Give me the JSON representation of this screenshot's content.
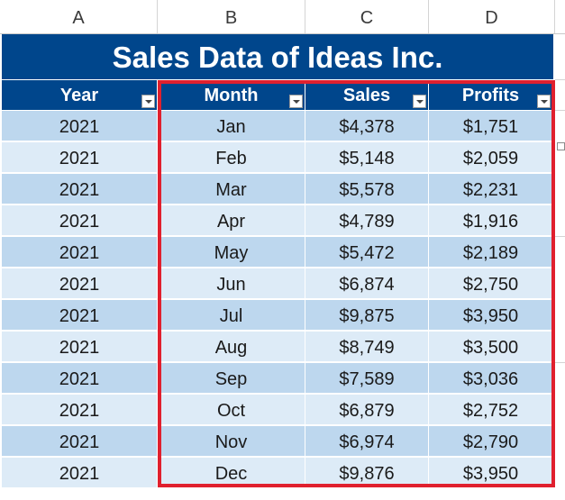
{
  "columns": [
    "A",
    "B",
    "C",
    "D"
  ],
  "table": {
    "title": "Sales Data of Ideas Inc.",
    "headers": [
      "Year",
      "Month",
      "Sales",
      "Profits"
    ],
    "rows": [
      [
        "2021",
        "Jan",
        "$4,378",
        "$1,751"
      ],
      [
        "2021",
        "Feb",
        "$5,148",
        "$2,059"
      ],
      [
        "2021",
        "Mar",
        "$5,578",
        "$2,231"
      ],
      [
        "2021",
        "Apr",
        "$4,789",
        "$1,916"
      ],
      [
        "2021",
        "May",
        "$5,472",
        "$2,189"
      ],
      [
        "2021",
        "Jun",
        "$6,874",
        "$2,750"
      ],
      [
        "2021",
        "Jul",
        "$9,875",
        "$3,950"
      ],
      [
        "2021",
        "Aug",
        "$8,749",
        "$3,500"
      ],
      [
        "2021",
        "Sep",
        "$7,589",
        "$3,036"
      ],
      [
        "2021",
        "Oct",
        "$6,879",
        "$2,752"
      ],
      [
        "2021",
        "Nov",
        "$6,974",
        "$2,790"
      ],
      [
        "2021",
        "Dec",
        "$9,876",
        "$3,950"
      ]
    ]
  },
  "colors": {
    "header_bg": "#00468c",
    "row_odd": "#bdd7ee",
    "row_even": "#ddebf7",
    "selection": "#e0202e"
  }
}
